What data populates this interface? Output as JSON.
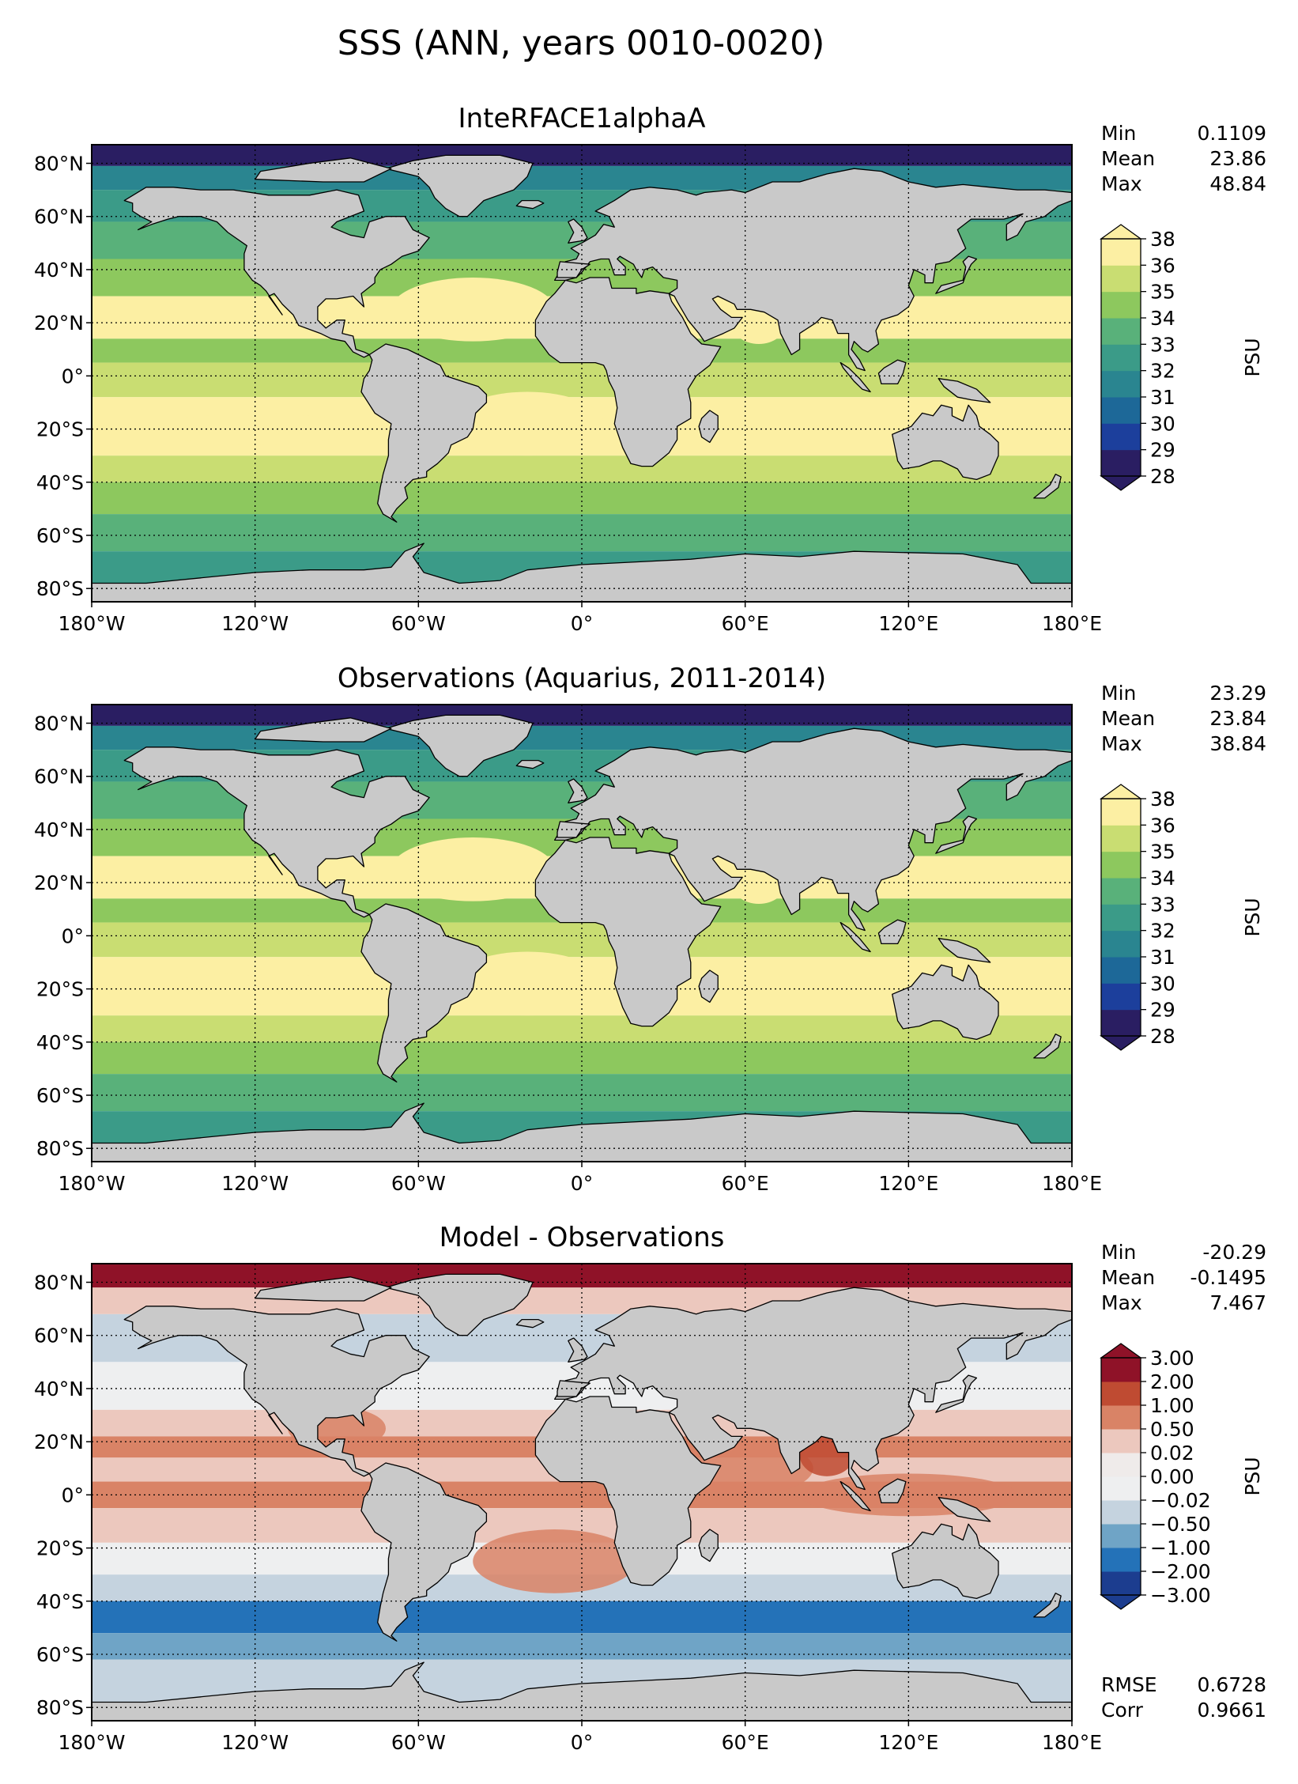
{
  "figure_title": "SSS (ANN, years 0010-0020)",
  "chart_data": [
    {
      "type": "map",
      "title": "InteRFACE1alphaA",
      "projection": "plate-carree",
      "xticks": [
        "180°W",
        "120°W",
        "60°W",
        "0°",
        "60°E",
        "120°E",
        "180°E"
      ],
      "yticks": [
        "80°N",
        "60°N",
        "40°N",
        "20°N",
        "0°",
        "20°S",
        "40°S",
        "60°S",
        "80°S"
      ],
      "xlim": [
        -180,
        180
      ],
      "ylim": [
        -85,
        87
      ],
      "grid": true,
      "stats": [
        {
          "label": "Min",
          "value": "0.1109"
        },
        {
          "label": "Mean",
          "value": "23.86"
        },
        {
          "label": "Max",
          "value": "48.84"
        }
      ],
      "colorbar": {
        "label": "PSU",
        "ticks": [
          "28",
          "29",
          "30",
          "31",
          "32",
          "33",
          "34",
          "35",
          "36",
          "38"
        ],
        "colors": [
          "#2a1e62",
          "#1c3f9c",
          "#1d6898",
          "#2a8590",
          "#3b9b88",
          "#59b17a",
          "#8dc85e",
          "#c9dd72",
          "#fcefa3"
        ],
        "extend": "both"
      }
    },
    {
      "type": "map",
      "title": "Observations (Aquarius, 2011-2014)",
      "projection": "plate-carree",
      "xticks": [
        "180°W",
        "120°W",
        "60°W",
        "0°",
        "60°E",
        "120°E",
        "180°E"
      ],
      "yticks": [
        "80°N",
        "60°N",
        "40°N",
        "20°N",
        "0°",
        "20°S",
        "40°S",
        "60°S",
        "80°S"
      ],
      "xlim": [
        -180,
        180
      ],
      "ylim": [
        -85,
        87
      ],
      "grid": true,
      "stats": [
        {
          "label": "Min",
          "value": "23.29"
        },
        {
          "label": "Mean",
          "value": "23.84"
        },
        {
          "label": "Max",
          "value": "38.84"
        }
      ],
      "colorbar": {
        "label": "PSU",
        "ticks": [
          "28",
          "29",
          "30",
          "31",
          "32",
          "33",
          "34",
          "35",
          "36",
          "38"
        ],
        "colors": [
          "#2a1e62",
          "#1c3f9c",
          "#1d6898",
          "#2a8590",
          "#3b9b88",
          "#59b17a",
          "#8dc85e",
          "#c9dd72",
          "#fcefa3"
        ],
        "extend": "both"
      }
    },
    {
      "type": "map",
      "title": "Model - Observations",
      "projection": "plate-carree",
      "xticks": [
        "180°W",
        "120°W",
        "60°W",
        "0°",
        "60°E",
        "120°E",
        "180°E"
      ],
      "yticks": [
        "80°N",
        "60°N",
        "40°N",
        "20°N",
        "0°",
        "20°S",
        "40°S",
        "60°S",
        "80°S"
      ],
      "xlim": [
        -180,
        180
      ],
      "ylim": [
        -85,
        87
      ],
      "grid": true,
      "stats": [
        {
          "label": "Min",
          "value": "-20.29"
        },
        {
          "label": "Mean",
          "value": "-0.1495"
        },
        {
          "label": "Max",
          "value": "7.467"
        }
      ],
      "bottom_stats": [
        {
          "label": "RMSE",
          "value": "0.6728"
        },
        {
          "label": "Corr",
          "value": "0.9661"
        }
      ],
      "colorbar": {
        "label": "PSU",
        "ticks": [
          "−3.00",
          "−2.00",
          "−1.00",
          "−0.50",
          "−0.02",
          "0.00",
          "0.02",
          "0.50",
          "1.00",
          "2.00",
          "3.00"
        ],
        "colors": [
          "#1c3d8f",
          "#2472b8",
          "#6fa4c6",
          "#c5d3df",
          "#eeeff0",
          "#efebea",
          "#ecc8be",
          "#d98366",
          "#bf4b32",
          "#8f1228"
        ],
        "extend": "both"
      }
    }
  ]
}
